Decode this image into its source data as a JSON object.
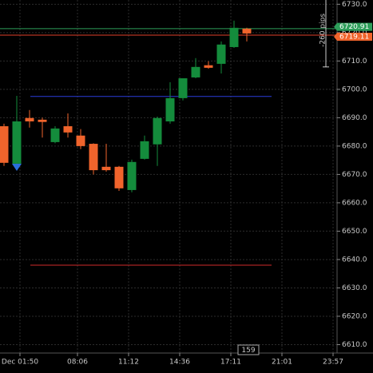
{
  "chart_data": {
    "type": "candlestick",
    "open": [
      6687.0,
      6673.8,
      6689.9,
      6689.3,
      6681.4,
      6687.0,
      6683.7,
      6680.8,
      6672.7,
      6672.7,
      6664.5,
      6675.5,
      6680.6,
      6688.7,
      6696.9,
      6704.2,
      6708.5,
      6709.0,
      6714.9,
      6721.4
    ],
    "high": [
      6687.9,
      6697.7,
      6692.7,
      6690.0,
      6687.0,
      6691.5,
      6686.0,
      6681.0,
      6680.8,
      6673.0,
      6675.2,
      6683.7,
      6690.4,
      6702.5,
      6703.9,
      6711.0,
      6709.9,
      6716.9,
      6724.2,
      6721.7
    ],
    "low": [
      6673.0,
      6673.5,
      6686.5,
      6683.0,
      6681.0,
      6683.0,
      6678.9,
      6670.0,
      6671.0,
      6664.2,
      6663.7,
      6675.2,
      6673.0,
      6687.9,
      6696.1,
      6703.9,
      6707.3,
      6705.6,
      6714.6,
      6716.9
    ],
    "close": [
      6674.1,
      6688.7,
      6688.7,
      6688.5,
      6686.2,
      6684.8,
      6680.0,
      6671.5,
      6671.5,
      6665.1,
      6674.4,
      6681.7,
      6689.9,
      6696.9,
      6703.9,
      6707.9,
      6707.6,
      6715.8,
      6721.7,
      6719.7
    ],
    "up_color": "#148c3c",
    "down_color": "#f0642c",
    "ylim": [
      6607.6,
      6731.5
    ],
    "yticks": [
      {
        "value": 6730,
        "label": "6730.0"
      },
      {
        "value": 6720,
        "label": "6720.0"
      },
      {
        "value": 6710,
        "label": "6710.0"
      },
      {
        "value": 6700,
        "label": "6700.0"
      },
      {
        "value": 6690,
        "label": "6690.0"
      },
      {
        "value": 6680,
        "label": "6680.0"
      },
      {
        "value": 6670,
        "label": "6670.0"
      },
      {
        "value": 6660,
        "label": "6660.0"
      },
      {
        "value": 6650,
        "label": "6650.0"
      },
      {
        "value": 6640,
        "label": "6640.0"
      },
      {
        "value": 6630,
        "label": "6630.0"
      },
      {
        "value": 6620,
        "label": "6620.0"
      },
      {
        "value": 6610,
        "label": "6610.0"
      }
    ],
    "xticks": [
      {
        "value": 1.25,
        "label": "Dec 01:50"
      },
      {
        "value": 5.75,
        "label": "08:06"
      },
      {
        "value": 9.75,
        "label": "11:12"
      },
      {
        "value": 13.75,
        "label": "14:36"
      },
      {
        "value": 17.75,
        "label": "17:11"
      },
      {
        "value": 21.75,
        "label": "21:01"
      },
      {
        "value": 25.75,
        "label": "23:57"
      }
    ],
    "grid": true,
    "hlines": [
      {
        "value": 6721.4,
        "color": "#2e9e5a"
      },
      {
        "value": 6719.11,
        "color": "#e0402a"
      },
      {
        "value": 6697.5,
        "color": "#2a3cdc"
      },
      {
        "value": 6638.0,
        "color": "#d02a2a"
      }
    ],
    "price_tags": [
      {
        "value": 6720.91,
        "color": "#2e9e5a"
      },
      {
        "value": 6719.11,
        "color": "#f0642c"
      }
    ],
    "ruler": {
      "label": "-260 pips",
      "top": 6731.5,
      "bottom": 6707.9
    },
    "countdown": "159"
  }
}
